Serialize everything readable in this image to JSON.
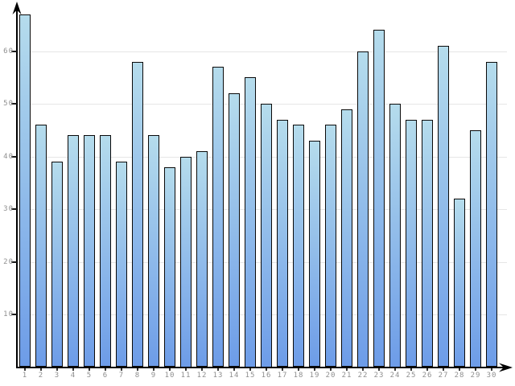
{
  "chart_data": {
    "type": "bar",
    "title": "",
    "xlabel": "",
    "ylabel": "",
    "categories": [
      "1",
      "2",
      "3",
      "4",
      "5",
      "6",
      "7",
      "8",
      "9",
      "10",
      "11",
      "12",
      "13",
      "14",
      "15",
      "16",
      "17",
      "18",
      "19",
      "20",
      "21",
      "22",
      "23",
      "24",
      "25",
      "26",
      "27",
      "28",
      "29",
      "30"
    ],
    "values": [
      67,
      46,
      39,
      44,
      44,
      44,
      39,
      58,
      44,
      38,
      40,
      41,
      57,
      52,
      55,
      50,
      47,
      46,
      43,
      46,
      49,
      60,
      64,
      50,
      47,
      47,
      61,
      32,
      45,
      58
    ],
    "y_ticks": [
      10,
      20,
      30,
      40,
      50,
      60
    ],
    "ylim": [
      0,
      70
    ],
    "grid": "horizontal-only",
    "legend": "none",
    "colors": {
      "bar_gradient_top": "#b5dcec",
      "bar_gradient_bottom": "#6d9ce8",
      "bar_border": "#0a0a0a",
      "gridline": "#e6e6e6",
      "axis": "#000000",
      "tick_label": "#8f8f8f",
      "background": "#ffffff"
    }
  }
}
